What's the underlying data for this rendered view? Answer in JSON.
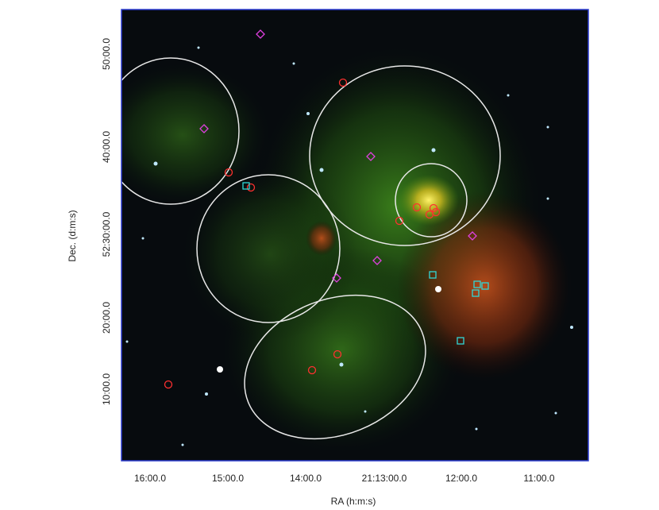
{
  "axes": {
    "x_label": "RA (h:m:s)",
    "y_label": "Dec. (d:m:s)",
    "x_ticks": [
      "16:00.0",
      "15:00.0",
      "14:00.0",
      "21:13:00.0",
      "12:00.0",
      "11:00.0"
    ],
    "y_ticks": [
      "50:00.0",
      "40:00.0",
      "52:30:00.0",
      "20:00.0",
      "10:00.0"
    ]
  }
}
